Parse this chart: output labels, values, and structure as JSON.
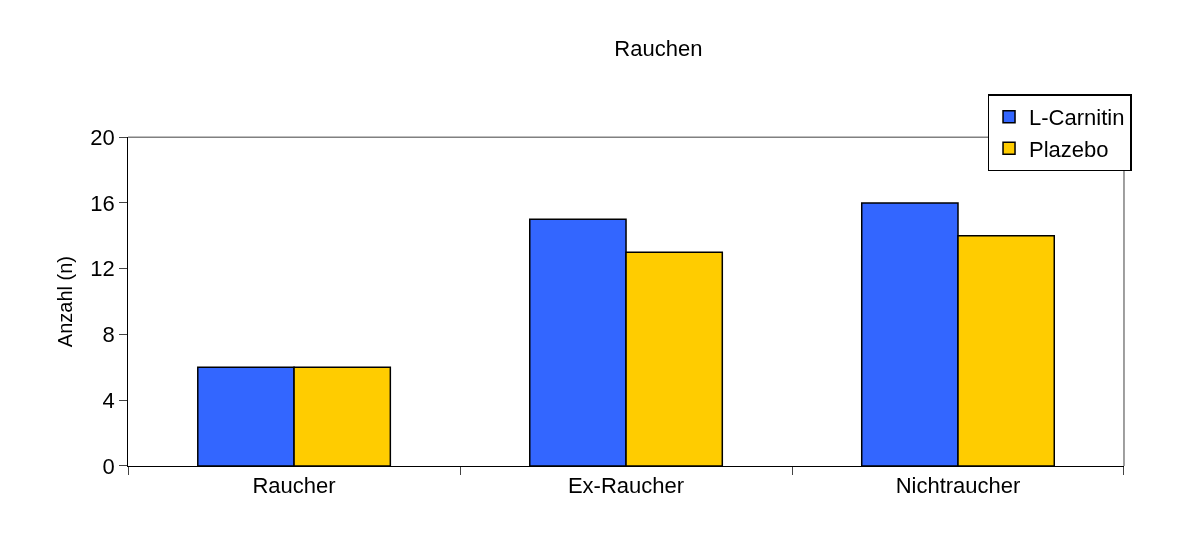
{
  "chart_data": {
    "type": "bar",
    "title": "Rauchen",
    "ylabel": "Anzahl (n)",
    "categories": [
      "Raucher",
      "Ex-Raucher",
      "Nichtraucher"
    ],
    "series": [
      {
        "name": "L-Carnitin",
        "color": "#3366ff",
        "values": [
          6,
          15,
          16
        ]
      },
      {
        "name": "Plazebo",
        "color": "#ffcc00",
        "values": [
          6,
          13,
          14
        ]
      }
    ],
    "ylim": [
      0,
      20
    ],
    "yticks": [
      0,
      4,
      8,
      12,
      16,
      20
    ],
    "legend": "top right"
  }
}
